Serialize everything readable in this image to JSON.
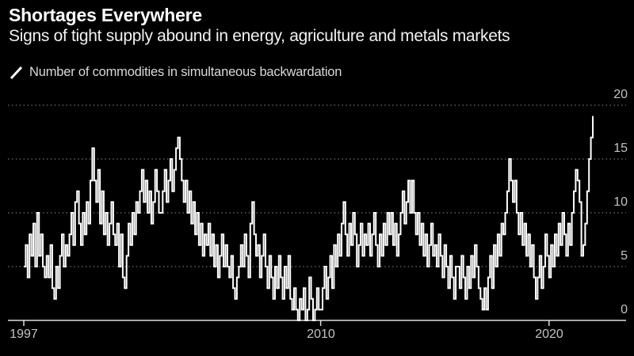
{
  "header": {
    "title": "Shortages Everywhere",
    "subtitle": "Signs of tight supply abound in energy, agriculture and metals markets"
  },
  "legend": {
    "icon": "diagonal-line-icon",
    "label": "Number of commodities in simultaneous backwardation"
  },
  "colors": {
    "background": "#000000",
    "series": "#ffffff",
    "grid": "#909090",
    "axis": "#dedede",
    "tick_label": "#c2c2c2"
  },
  "chart_data": {
    "type": "line",
    "step": true,
    "title": "Shortages Everywhere",
    "subtitle": "Signs of tight supply abound in energy, agriculture and metals markets",
    "series_label": "Number of commodities in simultaneous backwardation",
    "x_start_year": 1997,
    "points_per_year": 12,
    "ylim": [
      0,
      20
    ],
    "yticks": [
      0,
      5,
      10,
      15,
      20
    ],
    "xticks": [
      1997,
      2010,
      2020
    ],
    "grid": "dotted-horizontal",
    "legend_position": "top-left",
    "values": [
      5,
      7,
      4,
      8,
      6,
      9,
      5,
      10,
      6,
      8,
      5,
      4,
      6,
      4,
      7,
      3,
      2,
      5,
      3,
      6,
      8,
      5,
      7,
      6,
      8,
      10,
      7,
      11,
      12,
      9,
      7,
      10,
      8,
      11,
      9,
      13,
      16,
      13,
      11,
      14,
      9,
      12,
      8,
      10,
      7,
      9,
      11,
      8,
      7,
      9,
      5,
      8,
      4,
      3,
      6,
      9,
      7,
      10,
      8,
      11,
      10,
      12,
      14,
      11,
      13,
      10,
      12,
      9,
      11,
      14,
      12,
      10,
      10,
      12,
      14,
      11,
      13,
      15,
      12,
      14,
      16,
      17,
      15,
      13,
      11,
      13,
      10,
      12,
      9,
      11,
      8,
      10,
      7,
      9,
      6,
      8,
      7,
      9,
      6,
      8,
      5,
      7,
      4,
      6,
      8,
      5,
      7,
      5,
      4,
      6,
      3,
      2,
      4,
      5,
      7,
      5,
      8,
      6,
      4,
      9,
      11,
      8,
      6,
      7,
      4,
      6,
      8,
      5,
      3,
      6,
      4,
      2,
      5,
      3,
      6,
      4,
      2,
      5,
      3,
      6,
      2,
      1,
      3,
      1,
      0,
      2,
      1,
      3,
      0,
      1,
      4,
      2,
      0,
      1,
      3,
      1,
      1,
      3,
      5,
      2,
      4,
      6,
      3,
      7,
      5,
      8,
      6,
      9,
      11,
      8,
      6,
      9,
      7,
      10,
      8,
      5,
      7,
      9,
      6,
      8,
      7,
      9,
      6,
      8,
      10,
      7,
      5,
      8,
      6,
      9,
      7,
      10,
      8,
      10,
      7,
      9,
      6,
      8,
      10,
      12,
      9,
      11,
      13,
      10,
      13,
      10,
      8,
      10,
      7,
      9,
      6,
      8,
      5,
      7,
      9,
      6,
      7,
      5,
      8,
      6,
      4,
      7,
      5,
      3,
      6,
      4,
      2,
      5,
      5,
      3,
      6,
      4,
      2,
      5,
      3,
      6,
      4,
      7,
      5,
      3,
      2,
      1,
      3,
      1,
      4,
      6,
      3,
      7,
      5,
      8,
      6,
      9,
      8,
      10,
      12,
      15,
      13,
      11,
      13,
      10,
      8,
      10,
      7,
      9,
      6,
      8,
      5,
      7,
      4,
      2,
      4,
      6,
      3,
      5,
      8,
      6,
      4,
      7,
      5,
      8,
      6,
      9,
      7,
      10,
      8,
      6,
      9,
      7,
      10,
      12,
      14,
      13,
      11,
      6,
      7,
      9,
      12,
      15,
      17,
      19
    ]
  }
}
